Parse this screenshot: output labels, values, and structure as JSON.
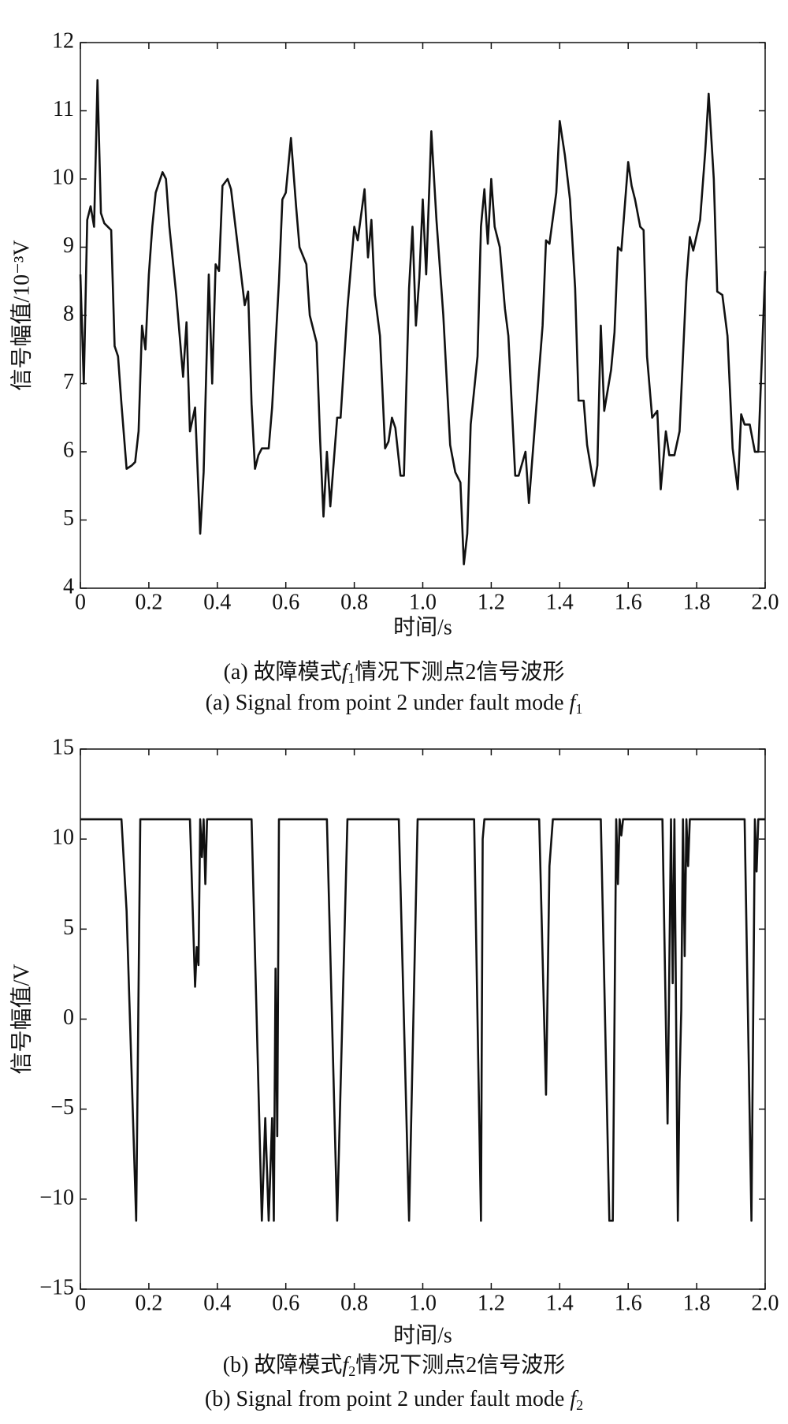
{
  "chart_data": [
    {
      "type": "line",
      "y_label": "信号幅值/10⁻³V",
      "x_label": "时间/s",
      "caption_cn": {
        "pre": "(a) 故障模式",
        "var": "f",
        "sub": "1",
        "post": "情况下测点2信号波形"
      },
      "caption_en": {
        "pre": "(a) Signal from point 2 under fault mode ",
        "var": "f",
        "sub": "1"
      },
      "xlim": [
        0,
        2
      ],
      "ylim": [
        4,
        12
      ],
      "xticks": [
        0,
        0.2,
        0.4,
        0.6,
        0.8,
        {
          "value": 1,
          "label": "1.0"
        },
        1.2,
        1.4,
        1.6,
        1.8,
        {
          "value": 2,
          "label": "2.0"
        }
      ],
      "yticks": [
        4,
        5,
        6,
        7,
        8,
        9,
        10,
        11,
        12
      ],
      "series": [
        {
          "color": "#111111",
          "x": [
            0,
            0.01,
            0.02,
            0.03,
            0.04,
            0.05,
            0.06,
            0.07,
            0.08,
            0.09,
            0.1,
            0.11,
            0.12,
            0.135,
            0.15,
            0.16,
            0.17,
            0.18,
            0.19,
            0.2,
            0.21,
            0.22,
            0.24,
            0.25,
            0.26,
            0.28,
            0.3,
            0.31,
            0.32,
            0.335,
            0.35,
            0.36,
            0.375,
            0.385,
            0.395,
            0.405,
            0.415,
            0.43,
            0.44,
            0.46,
            0.48,
            0.49,
            0.5,
            0.51,
            0.52,
            0.53,
            0.55,
            0.56,
            0.58,
            0.59,
            0.6,
            0.615,
            0.63,
            0.64,
            0.66,
            0.67,
            0.69,
            0.7,
            0.71,
            0.72,
            0.73,
            0.75,
            0.76,
            0.78,
            0.8,
            0.81,
            0.83,
            0.84,
            0.85,
            0.86,
            0.875,
            0.89,
            0.9,
            0.91,
            0.92,
            0.935,
            0.945,
            0.96,
            0.97,
            0.98,
            0.99,
            1.0,
            1.01,
            1.025,
            1.04,
            1.06,
            1.08,
            1.095,
            1.11,
            1.12,
            1.13,
            1.14,
            1.16,
            1.17,
            1.18,
            1.19,
            1.2,
            1.21,
            1.225,
            1.24,
            1.25,
            1.27,
            1.28,
            1.3,
            1.31,
            1.32,
            1.35,
            1.36,
            1.37,
            1.39,
            1.4,
            1.415,
            1.43,
            1.445,
            1.455,
            1.47,
            1.48,
            1.5,
            1.51,
            1.52,
            1.53,
            1.55,
            1.56,
            1.57,
            1.58,
            1.6,
            1.61,
            1.62,
            1.635,
            1.645,
            1.655,
            1.67,
            1.685,
            1.695,
            1.71,
            1.72,
            1.735,
            1.75,
            1.77,
            1.78,
            1.79,
            1.81,
            1.825,
            1.835,
            1.85,
            1.86,
            1.875,
            1.89,
            1.905,
            1.92,
            1.93,
            1.94,
            1.955,
            1.97,
            1.98,
            2.0
          ],
          "values": [
            8.6,
            7.0,
            9.4,
            9.6,
            9.3,
            11.45,
            9.5,
            9.35,
            9.3,
            9.25,
            7.55,
            7.4,
            6.7,
            5.75,
            5.8,
            5.85,
            6.3,
            7.85,
            7.5,
            8.6,
            9.3,
            9.8,
            10.1,
            10.0,
            9.3,
            8.3,
            7.1,
            7.9,
            6.3,
            6.65,
            4.8,
            5.7,
            8.6,
            7.0,
            8.75,
            8.65,
            9.9,
            10.0,
            9.85,
            9.0,
            8.15,
            8.35,
            6.7,
            5.75,
            5.95,
            6.05,
            6.05,
            6.65,
            8.5,
            9.7,
            9.8,
            10.6,
            9.6,
            9.0,
            8.75,
            8.0,
            7.6,
            6.2,
            5.05,
            6.0,
            5.2,
            6.5,
            6.5,
            8.1,
            9.3,
            9.1,
            9.85,
            8.85,
            9.4,
            8.3,
            7.7,
            6.05,
            6.15,
            6.5,
            6.35,
            5.65,
            5.65,
            8.4,
            9.3,
            7.85,
            8.55,
            9.7,
            8.6,
            10.7,
            9.4,
            8.0,
            6.1,
            5.7,
            5.55,
            4.35,
            4.8,
            6.4,
            7.4,
            9.3,
            9.85,
            9.05,
            10.0,
            9.3,
            9.0,
            8.1,
            7.7,
            5.65,
            5.65,
            6.0,
            5.25,
            5.9,
            7.85,
            9.1,
            9.05,
            9.8,
            10.85,
            10.35,
            9.7,
            8.4,
            6.75,
            6.75,
            6.1,
            5.5,
            5.8,
            7.85,
            6.6,
            7.2,
            7.75,
            9.0,
            8.95,
            10.25,
            9.9,
            9.7,
            9.3,
            9.25,
            7.4,
            6.5,
            6.6,
            5.45,
            6.3,
            5.95,
            5.95,
            6.3,
            8.5,
            9.15,
            8.95,
            9.4,
            10.4,
            11.25,
            10.0,
            8.35,
            8.3,
            7.7,
            6.05,
            5.45,
            6.55,
            6.4,
            6.4,
            6.0,
            6.0,
            8.65
          ]
        }
      ]
    },
    {
      "type": "line",
      "y_label": "信号幅值/V",
      "x_label": "时间/s",
      "caption_cn": {
        "pre": "(b) 故障模式",
        "var": "f",
        "sub": "2",
        "post": "情况下测点2信号波形"
      },
      "caption_en": {
        "pre": "(b) Signal from point 2 under fault mode ",
        "var": "f",
        "sub": "2"
      },
      "xlim": [
        0,
        2
      ],
      "ylim": [
        -15,
        15
      ],
      "xticks": [
        0,
        0.2,
        0.4,
        0.6,
        0.8,
        {
          "value": 1,
          "label": "1.0"
        },
        1.2,
        1.4,
        1.6,
        1.8,
        {
          "value": 2,
          "label": "2.0"
        }
      ],
      "yticks": [
        {
          "value": -15,
          "label": "−15"
        },
        {
          "value": -10,
          "label": "−10"
        },
        {
          "value": -5,
          "label": "−5"
        },
        0,
        5,
        10,
        15
      ],
      "series": [
        {
          "color": "#111111",
          "x": [
            0,
            0.12,
            0.135,
            0.163,
            0.175,
            0.32,
            0.335,
            0.34,
            0.345,
            0.35,
            0.355,
            0.36,
            0.365,
            0.37,
            0.5,
            0.53,
            0.54,
            0.55,
            0.56,
            0.565,
            0.57,
            0.575,
            0.58,
            0.72,
            0.75,
            0.78,
            0.93,
            0.96,
            0.985,
            1.15,
            1.17,
            1.175,
            1.18,
            1.34,
            1.36,
            1.37,
            1.38,
            1.52,
            1.545,
            1.555,
            1.565,
            1.57,
            1.575,
            1.58,
            1.585,
            1.7,
            1.715,
            1.725,
            1.73,
            1.735,
            1.745,
            1.75,
            1.755,
            1.76,
            1.765,
            1.77,
            1.775,
            1.78,
            1.94,
            1.96,
            1.97,
            1.975,
            1.98,
            2.0
          ],
          "values": [
            11.1,
            11.1,
            6,
            -11.2,
            11.1,
            11.1,
            1.8,
            4,
            3,
            11.1,
            9,
            11.1,
            7.5,
            11.1,
            11.1,
            -11.2,
            -5.5,
            -11.2,
            -5.5,
            -11.2,
            2.8,
            -6.5,
            11.1,
            11.1,
            -11.2,
            11.1,
            11.1,
            -11.2,
            11.1,
            11.1,
            -11.2,
            10,
            11.1,
            11.1,
            -4.2,
            8.5,
            11.1,
            11.1,
            -11.2,
            -11.2,
            11.1,
            7.5,
            11.1,
            10.2,
            11.1,
            11.1,
            -5.8,
            11.1,
            2,
            11.1,
            -11.2,
            -3.5,
            0.5,
            11.1,
            3.5,
            11.1,
            8.5,
            11.1,
            11.1,
            -11.2,
            11.1,
            8.2,
            11.1,
            11.1
          ]
        }
      ]
    }
  ]
}
